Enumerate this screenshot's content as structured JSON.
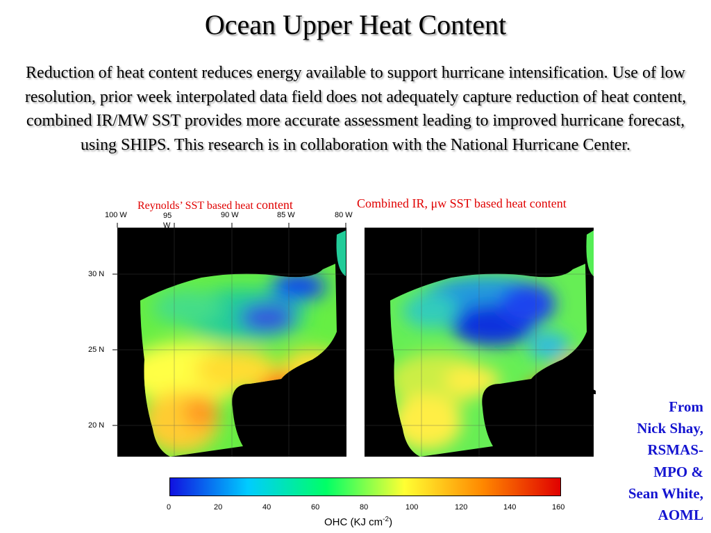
{
  "title": "Ocean Upper Heat Content",
  "description": "Reduction of heat content reduces energy available to support hurricane intensification. Use of low resolution, prior week interpolated data field does not adequately capture reduction of heat content, combined IR/MW SST provides more accurate assessment leading to improved hurricane forecast, using SHIPS. This research is in collaboration with the National Hurricane Center.",
  "left_caption_prefix": "Reynolds’ SST based heat",
  "left_caption_suffix": "content",
  "right_caption": "Combined IR, μw SST based heat content",
  "longitude_labels": [
    "100 W",
    "95 W",
    "90 W",
    "85 W",
    "80 W"
  ],
  "latitude_labels": [
    "30 N",
    "25 N",
    "20 N"
  ],
  "colorbar": {
    "ticks": [
      "0",
      "20",
      "40",
      "60",
      "80",
      "100",
      "120",
      "140",
      "160"
    ],
    "label_prefix": "OHC (KJ cm",
    "label_exponent": "-2",
    "label_suffix": ")",
    "colors": [
      "#1010e0",
      "#00ccff",
      "#00ff66",
      "#ffff33",
      "#ff8800",
      "#e00000"
    ]
  },
  "credit": {
    "line1": "From",
    "line2": "Nick Shay,",
    "line3": "RSMAS-",
    "line4": "MPO &",
    "line5": "Sean White,",
    "line6": "AOML"
  }
}
